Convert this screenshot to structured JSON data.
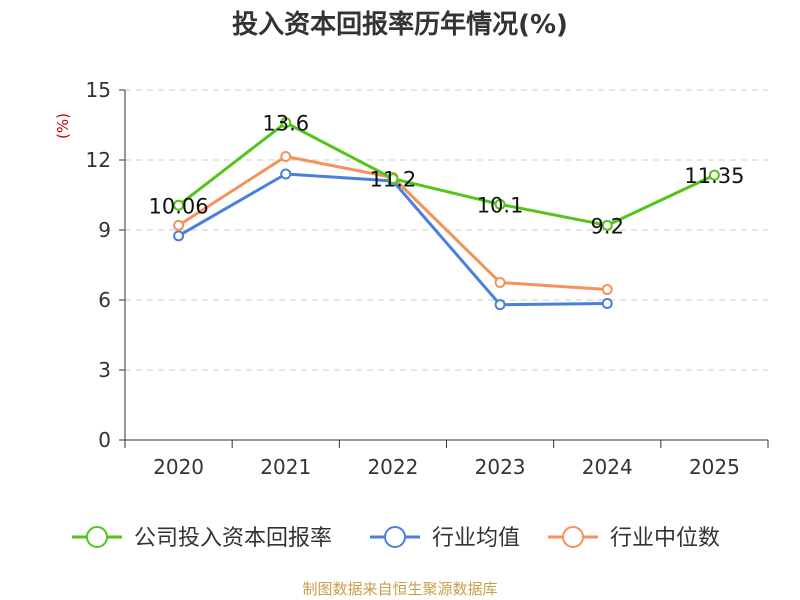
{
  "chart_data": {
    "type": "line",
    "title": "投入资本回报率历年情况(%)",
    "ylabel": "(%)",
    "xlabel": "",
    "categories": [
      "2020",
      "2021",
      "2022",
      "2023",
      "2024",
      "2025"
    ],
    "ylim": [
      0,
      15
    ],
    "yticks": [
      0,
      3,
      6,
      9,
      12,
      15
    ],
    "grid": true,
    "legend_position": "bottom",
    "series": [
      {
        "name": "公司投入资本回报率",
        "color": "#52c41a",
        "values": [
          10.06,
          13.6,
          11.2,
          10.1,
          9.2,
          11.35
        ],
        "labels": [
          "10.06",
          "13.6",
          "11.2",
          "10.1",
          "9.2",
          "11.35"
        ]
      },
      {
        "name": "行业均值",
        "color": "#4a7fdc",
        "values": [
          8.75,
          11.4,
          11.1,
          5.8,
          5.85,
          null
        ]
      },
      {
        "name": "行业中位数",
        "color": "#f5915a",
        "values": [
          9.2,
          12.15,
          11.25,
          6.75,
          6.45,
          null
        ]
      }
    ]
  },
  "footer": {
    "source": "制图数据来自恒生聚源数据库"
  }
}
